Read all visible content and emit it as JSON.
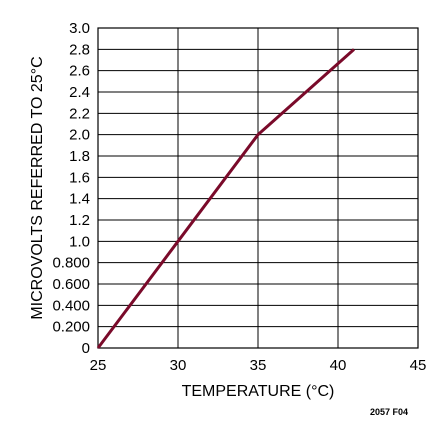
{
  "chart_data": {
    "type": "line",
    "title": "",
    "xlabel": "TEMPERATURE (°C)",
    "ylabel": "MICROVOLTS REFERRED TO 25°C",
    "xlim": [
      25,
      45
    ],
    "ylim": [
      0,
      3.0
    ],
    "x_ticks": [
      25,
      30,
      35,
      40,
      45
    ],
    "x_tick_labels": [
      "25",
      "30",
      "35",
      "40",
      "45"
    ],
    "y_ticks": [
      0,
      0.2,
      0.4,
      0.6,
      0.8,
      1.0,
      1.2,
      1.4,
      1.6,
      1.8,
      2.0,
      2.2,
      2.4,
      2.6,
      2.8,
      3.0
    ],
    "y_tick_labels": [
      "0",
      "0.200",
      "0.400",
      "0.600",
      "0.800",
      "1.0",
      "1.2",
      "1.4",
      "1.6",
      "1.8",
      "2.0",
      "2.2",
      "2.4",
      "2.6",
      "2.8",
      "3.0"
    ],
    "grid": true,
    "series": [
      {
        "x": [
          25,
          30,
          35,
          41
        ],
        "y": [
          0,
          1.0,
          2.0,
          2.8
        ],
        "color": "#7a0a2a"
      }
    ]
  },
  "figure_id": "2057 F04"
}
